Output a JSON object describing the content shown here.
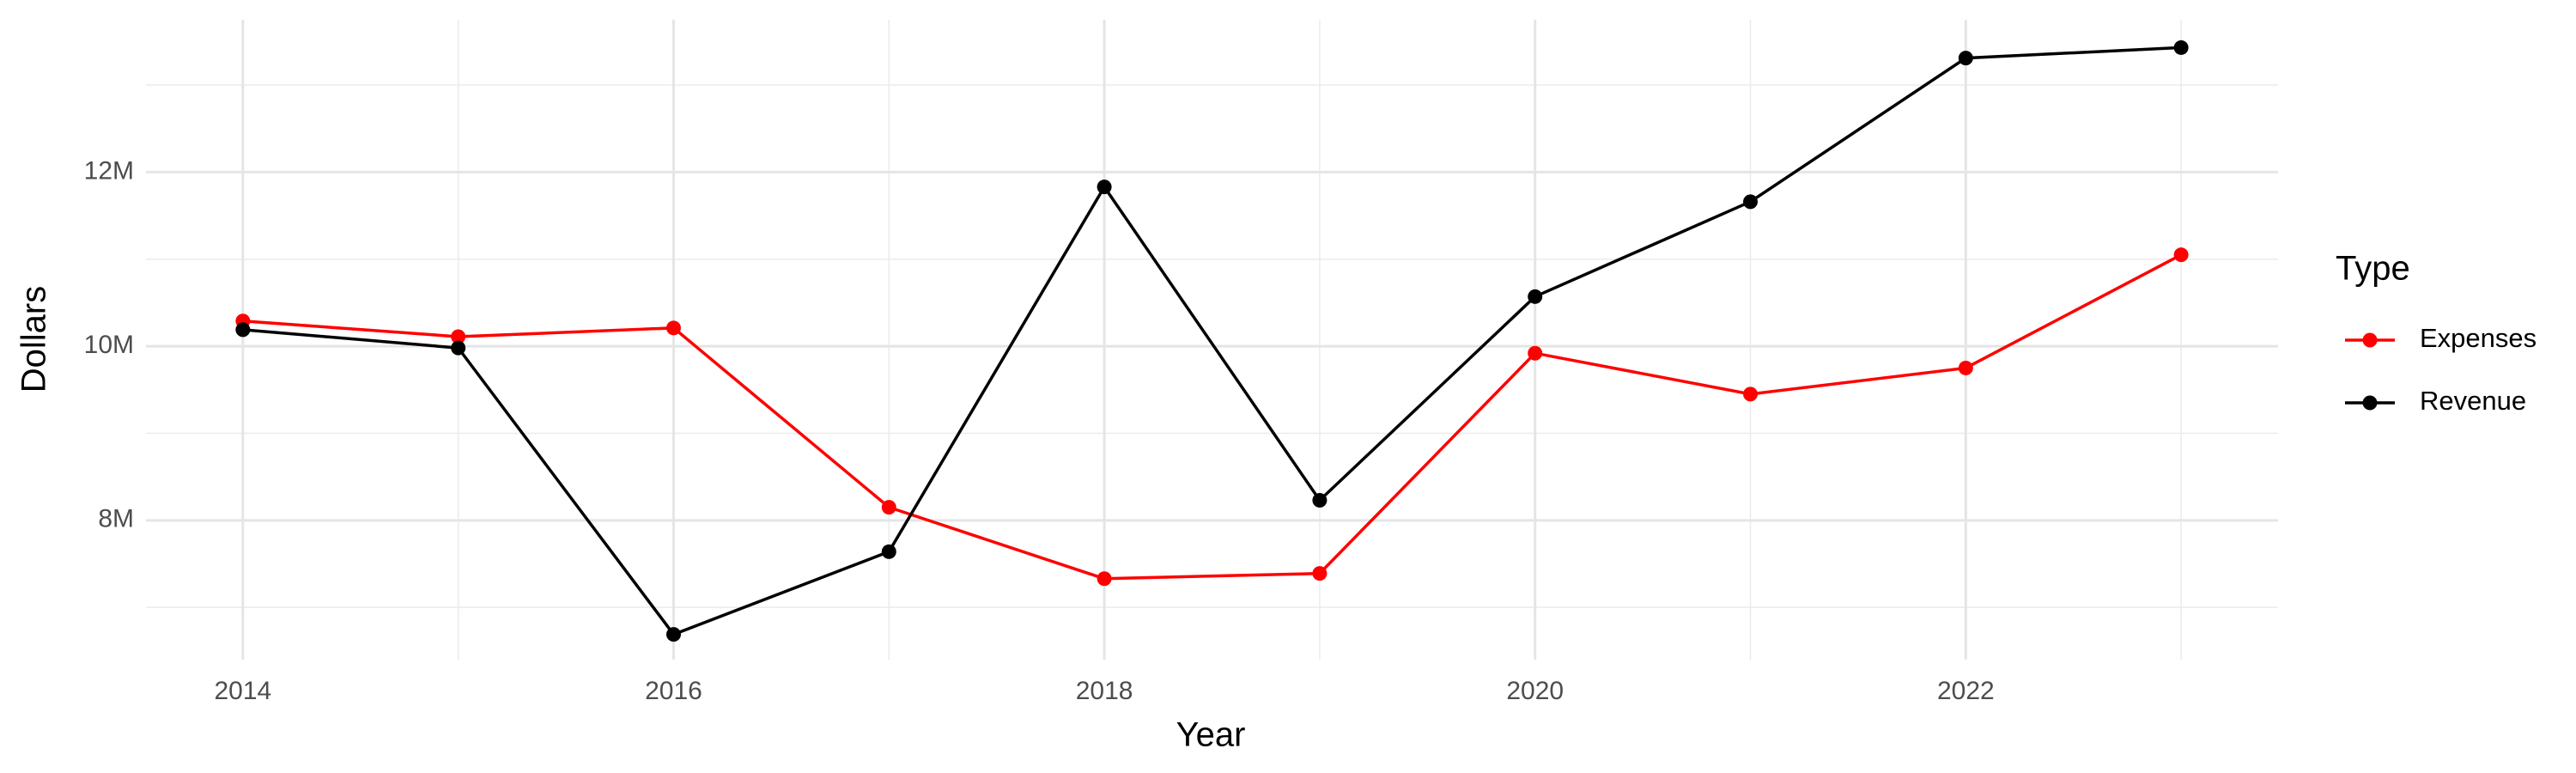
{
  "chart_data": {
    "type": "line",
    "x_label": "Year",
    "y_label": "Dollars",
    "legend_title": "Type",
    "x": [
      2014,
      2015,
      2016,
      2017,
      2018,
      2019,
      2020,
      2021,
      2022,
      2023
    ],
    "series": [
      {
        "name": "Expenses",
        "color": "#ff0000",
        "values": [
          10290000,
          10110000,
          10210000,
          8150000,
          7330000,
          7390000,
          9920000,
          9450000,
          9750000,
          11050000
        ]
      },
      {
        "name": "Revenue",
        "color": "#000000",
        "values": [
          10190000,
          9980000,
          6690000,
          7640000,
          11830000,
          8230000,
          10570000,
          11660000,
          13310000,
          13430000
        ]
      }
    ],
    "xlim": [
      2013.55,
      2023.45
    ],
    "xticks": [
      2014,
      2016,
      2018,
      2020,
      2022
    ],
    "ylim": [
      6400000,
      13750000
    ],
    "yticks": [
      {
        "value": 8000000,
        "label": "8M"
      },
      {
        "value": 10000000,
        "label": "10M"
      },
      {
        "value": 12000000,
        "label": "12M"
      }
    ],
    "grid": true,
    "legend_position": "right"
  }
}
